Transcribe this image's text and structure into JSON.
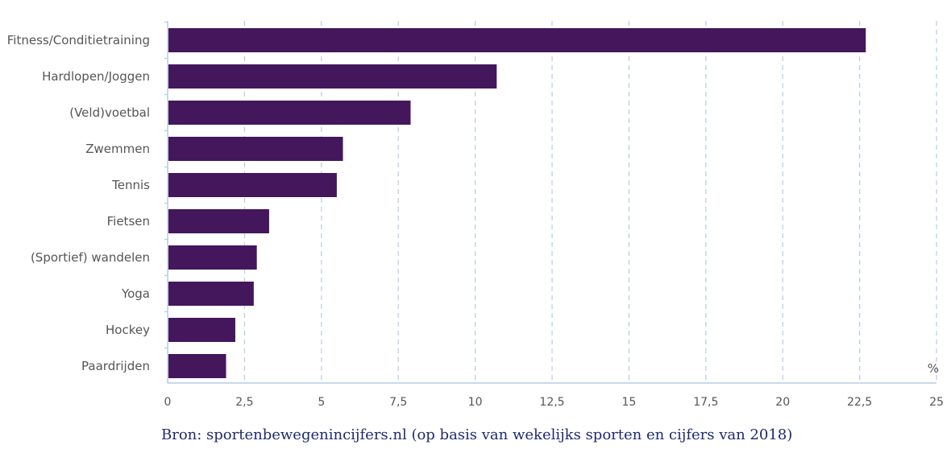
{
  "chart_data": {
    "type": "bar",
    "orientation": "horizontal",
    "categories": [
      "Fitness/Conditietraining",
      "Hardlopen/Joggen",
      "(Veld)voetbal",
      "Zwemmen",
      "Tennis",
      "Fietsen",
      "(Sportief) wandelen",
      "Yoga",
      "Hockey",
      "Paardrijden"
    ],
    "values": [
      22.7,
      10.7,
      7.9,
      5.7,
      5.5,
      3.3,
      2.9,
      2.8,
      2.2,
      1.9
    ],
    "xlim": [
      0,
      25
    ],
    "xticks": [
      0,
      2.5,
      5,
      7.5,
      10,
      12.5,
      15,
      17.5,
      20,
      22.5,
      25
    ],
    "xtick_labels": [
      "0",
      "2,5",
      "5",
      "7,5",
      "10",
      "12,5",
      "15",
      "17,5",
      "20",
      "22,5",
      "25"
    ],
    "unit": "%",
    "grid": "vertical dashed",
    "bar_color": "#44165c",
    "grid_color": "#b7cbe3",
    "axis_color": "#b7cbe3"
  },
  "source": "Bron: sportenbewegenincijfers.nl (op basis van wekelijks sporten en cijfers van 2018)"
}
